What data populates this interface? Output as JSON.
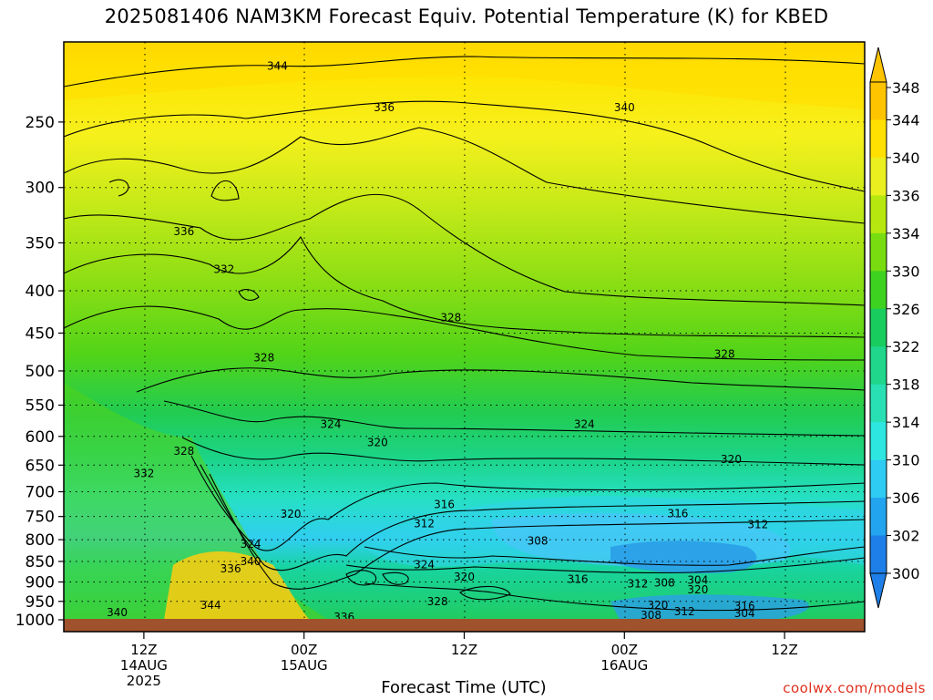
{
  "title": "2025081406 NAM3KM Forecast Equiv. Potential Temperature (K) for KBED",
  "footer": {
    "credit": "coolwx.com/models"
  },
  "chart_data": {
    "type": "heatmap",
    "title": "2025081406 NAM3KM Forecast Equiv. Potential Temperature (K) for KBED",
    "xlabel": "Forecast Time (UTC)",
    "ylabel": "",
    "x_range_hours": [
      0,
      60
    ],
    "y_scale": "log-pressure",
    "y_range_hpa": [
      1000,
      200
    ],
    "y_ticks": [
      250,
      300,
      350,
      400,
      450,
      500,
      550,
      600,
      650,
      700,
      750,
      800,
      850,
      900,
      950,
      1000
    ],
    "x_ticks": [
      {
        "hour": 6,
        "lines": [
          "12Z",
          "14AUG",
          "2025"
        ]
      },
      {
        "hour": 18,
        "lines": [
          "00Z",
          "15AUG"
        ]
      },
      {
        "hour": 30,
        "lines": [
          "12Z"
        ]
      },
      {
        "hour": 42,
        "lines": [
          "00Z",
          "16AUG"
        ]
      },
      {
        "hour": 54,
        "lines": [
          "12Z"
        ]
      }
    ],
    "colorbar_levels": [
      300,
      302,
      306,
      310,
      314,
      318,
      322,
      326,
      330,
      334,
      336,
      340,
      344,
      348
    ],
    "colorbar_colors": [
      "#1f7fe8",
      "#22a4ee",
      "#2ecbf2",
      "#2ee6e0",
      "#28e0b4",
      "#1fd68a",
      "#18cc5e",
      "#3ed220",
      "#78dc10",
      "#b6e810",
      "#eaf020",
      "#ffe000",
      "#ffc400"
    ],
    "colorbar_labels": [
      "348",
      "344",
      "340",
      "336",
      "334",
      "330",
      "326",
      "322",
      "318",
      "314",
      "310",
      "306",
      "302",
      "300"
    ],
    "grid": true,
    "ground_color": "#a0522d",
    "contour_labels": [
      {
        "value": "344",
        "hour": 16.0,
        "hpa": 214
      },
      {
        "value": "336",
        "hour": 24.0,
        "hpa": 240
      },
      {
        "value": "340",
        "hour": 42.0,
        "hpa": 240
      },
      {
        "value": "336",
        "hour": 9.0,
        "hpa": 339
      },
      {
        "value": "332",
        "hour": 12.0,
        "hpa": 377
      },
      {
        "value": "328",
        "hour": 29.0,
        "hpa": 431
      },
      {
        "value": "328",
        "hour": 15.0,
        "hpa": 482
      },
      {
        "value": "328",
        "hour": 49.5,
        "hpa": 477
      },
      {
        "value": "324",
        "hour": 20.0,
        "hpa": 580
      },
      {
        "value": "324",
        "hour": 39.0,
        "hpa": 580
      },
      {
        "value": "320",
        "hour": 23.5,
        "hpa": 610
      },
      {
        "value": "320",
        "hour": 50.0,
        "hpa": 640
      },
      {
        "value": "328",
        "hour": 9.0,
        "hpa": 625
      },
      {
        "value": "332",
        "hour": 6.0,
        "hpa": 665
      },
      {
        "value": "316",
        "hour": 28.5,
        "hpa": 725
      },
      {
        "value": "316",
        "hour": 46.0,
        "hpa": 744
      },
      {
        "value": "320",
        "hour": 17.0,
        "hpa": 745
      },
      {
        "value": "312",
        "hour": 27.0,
        "hpa": 765
      },
      {
        "value": "312",
        "hour": 52.0,
        "hpa": 767
      },
      {
        "value": "308",
        "hour": 35.5,
        "hpa": 803
      },
      {
        "value": "324",
        "hour": 14.0,
        "hpa": 810
      },
      {
        "value": "340",
        "hour": 14.0,
        "hpa": 850
      },
      {
        "value": "336",
        "hour": 12.5,
        "hpa": 868
      },
      {
        "value": "324",
        "hour": 27.0,
        "hpa": 858
      },
      {
        "value": "320",
        "hour": 30.0,
        "hpa": 888
      },
      {
        "value": "316",
        "hour": 38.5,
        "hpa": 893
      },
      {
        "value": "312",
        "hour": 43.0,
        "hpa": 905
      },
      {
        "value": "308",
        "hour": 45.0,
        "hpa": 902
      },
      {
        "value": "304",
        "hour": 47.5,
        "hpa": 895
      },
      {
        "value": "320",
        "hour": 47.5,
        "hpa": 920
      },
      {
        "value": "328",
        "hour": 28.0,
        "hpa": 950
      },
      {
        "value": "320",
        "hour": 44.5,
        "hpa": 960
      },
      {
        "value": "316",
        "hour": 51.0,
        "hpa": 963
      },
      {
        "value": "312",
        "hour": 46.5,
        "hpa": 977
      },
      {
        "value": "308",
        "hour": 44.0,
        "hpa": 988
      },
      {
        "value": "304",
        "hour": 51.0,
        "hpa": 983
      },
      {
        "value": "344",
        "hour": 11.0,
        "hpa": 960
      },
      {
        "value": "340",
        "hour": 4.0,
        "hpa": 980
      },
      {
        "value": "336",
        "hour": 21.0,
        "hpa": 993
      }
    ]
  }
}
